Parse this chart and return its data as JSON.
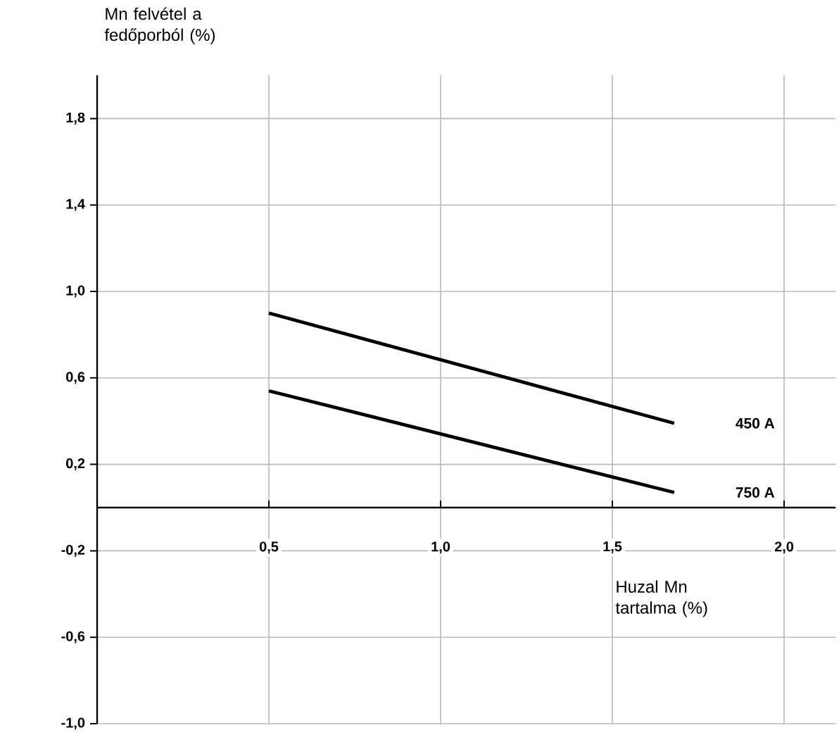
{
  "chart_data": {
    "type": "line",
    "xlabel": "Huzal Mn tartalma (%)",
    "ylabel": "Mn felvétel a fedőporból (%)",
    "x": [
      0.5,
      1.68
    ],
    "series": [
      {
        "name": "450 A",
        "color": "#000000",
        "values": [
          0.9,
          0.39
        ]
      },
      {
        "name": "750 A",
        "color": "#000000",
        "values": [
          0.54,
          0.07
        ]
      }
    ],
    "xlim": [
      0,
      2.15
    ],
    "ylim": [
      -1.0,
      2.0
    ],
    "xticks": [
      {
        "value": 0.5,
        "label": "0,5"
      },
      {
        "value": 1.0,
        "label": "1,0"
      },
      {
        "value": 1.5,
        "label": "1,5"
      },
      {
        "value": 2.0,
        "label": "2,0"
      }
    ],
    "yticks": [
      {
        "value": -1.0,
        "label": "-1,0"
      },
      {
        "value": -0.6,
        "label": "-0,6"
      },
      {
        "value": -0.2,
        "label": "-0,2"
      },
      {
        "value": 0.2,
        "label": "0,2"
      },
      {
        "value": 0.6,
        "label": "0,6"
      },
      {
        "value": 1.0,
        "label": "1,0"
      },
      {
        "value": 1.4,
        "label": "1,4"
      },
      {
        "value": 1.8,
        "label": "1,8"
      }
    ],
    "grid": true
  }
}
